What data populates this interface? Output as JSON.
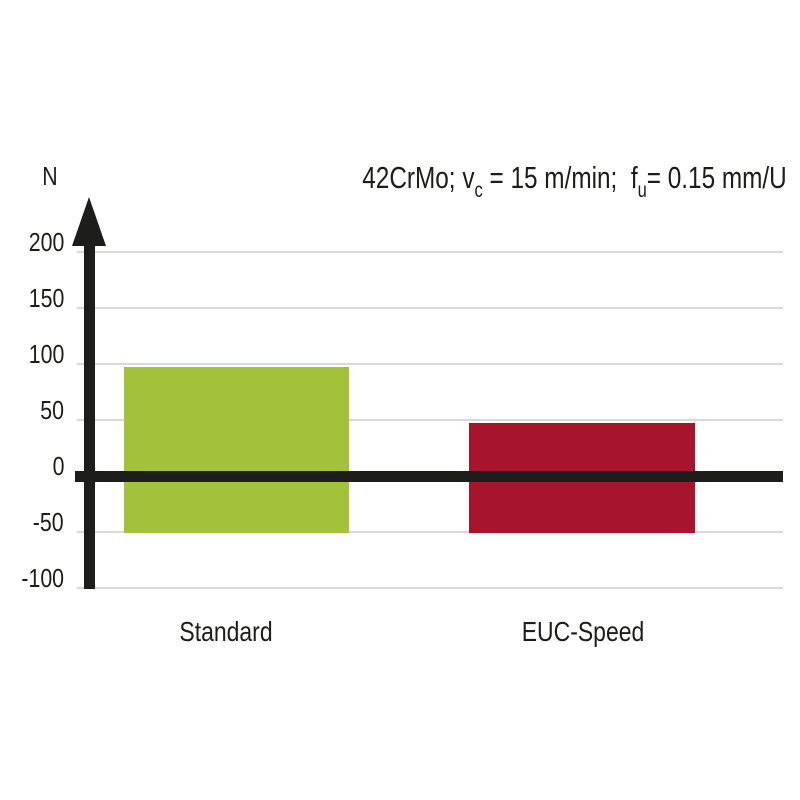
{
  "colors": {
    "background": "#ffffff",
    "ink": "#1d1d1b",
    "gridline": "#d9d9d9",
    "bar_standard": "#a3c13a",
    "bar_euc_speed": "#a6152b"
  },
  "chart_data": {
    "type": "bar",
    "title_plain": "42CrMo; vc = 15 m/min;  fu= 0.15 mm/U",
    "title_parts": [
      {
        "text": "42CrMo; v",
        "sub": false
      },
      {
        "text": "c",
        "sub": true
      },
      {
        "text": " = 15 m/min;  f",
        "sub": false
      },
      {
        "text": "u",
        "sub": true
      },
      {
        "text": "= 0.15 mm/U",
        "sub": false
      }
    ],
    "unit_label": "N",
    "ylabel": "N",
    "xlabel": "",
    "yticks": [
      200,
      150,
      100,
      50,
      0,
      -50,
      -100
    ],
    "ytick_step": 50,
    "ylim": [
      -100,
      240
    ],
    "grid": true,
    "zero_baseline": true,
    "legend": "none",
    "categories": [
      "Standard",
      "EUC-Speed"
    ],
    "series": [
      {
        "name": "Standard",
        "from": -50,
        "to": 100,
        "color": "#a3c13a"
      },
      {
        "name": "EUC-Speed",
        "from": -50,
        "to": 50,
        "color": "#a6152b"
      }
    ]
  }
}
